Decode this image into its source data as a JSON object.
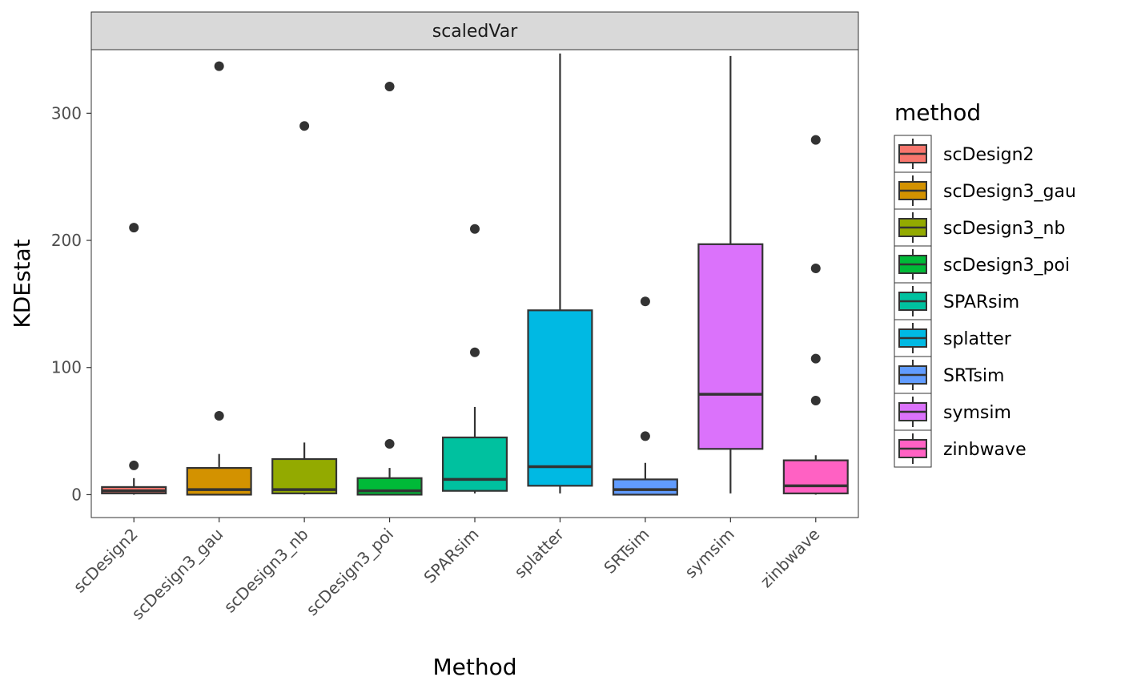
{
  "chart_data": {
    "type": "boxplot",
    "facet_label": "scaledVar",
    "xlabel": "Method",
    "ylabel": "KDEstat",
    "ylim": [
      -18,
      350
    ],
    "yticks": [
      0,
      100,
      200,
      300
    ],
    "grid": false,
    "legend": {
      "title": "method",
      "placement": "right"
    },
    "categories": [
      "scDesign2",
      "scDesign3_gau",
      "scDesign3_nb",
      "scDesign3_poi",
      "SPARsim",
      "splatter",
      "SRTsim",
      "symsim",
      "zinbwave"
    ],
    "colors": [
      "#F8766D",
      "#D39200",
      "#93AA00",
      "#00BA38",
      "#00C19F",
      "#00B9E3",
      "#619CFF",
      "#DB72FB",
      "#FF61C3"
    ],
    "boxes": [
      {
        "whisker_low": 0,
        "q1": 1,
        "median": 3,
        "q3": 6,
        "whisker_high": 13,
        "outliers": [
          23,
          210
        ]
      },
      {
        "whisker_low": 0,
        "q1": 0,
        "median": 4,
        "q3": 21,
        "whisker_high": 32,
        "outliers": [
          62,
          337
        ]
      },
      {
        "whisker_low": 0,
        "q1": 1,
        "median": 4,
        "q3": 28,
        "whisker_high": 41,
        "outliers": [
          290
        ]
      },
      {
        "whisker_low": 0,
        "q1": 0,
        "median": 3,
        "q3": 13,
        "whisker_high": 21,
        "outliers": [
          40,
          321
        ]
      },
      {
        "whisker_low": 1,
        "q1": 3,
        "median": 12,
        "q3": 45,
        "whisker_high": 69,
        "outliers": [
          112,
          209
        ]
      },
      {
        "whisker_low": 1,
        "q1": 7,
        "median": 22,
        "q3": 145,
        "whisker_high": 347,
        "outliers": []
      },
      {
        "whisker_low": 0,
        "q1": 0,
        "median": 4,
        "q3": 12,
        "whisker_high": 25,
        "outliers": [
          46,
          152
        ]
      },
      {
        "whisker_low": 1,
        "q1": 36,
        "median": 79,
        "q3": 197,
        "whisker_high": 345,
        "outliers": []
      },
      {
        "whisker_low": 0,
        "q1": 1,
        "median": 7,
        "q3": 27,
        "whisker_high": 31,
        "outliers": [
          74,
          107,
          178,
          279
        ]
      }
    ]
  }
}
